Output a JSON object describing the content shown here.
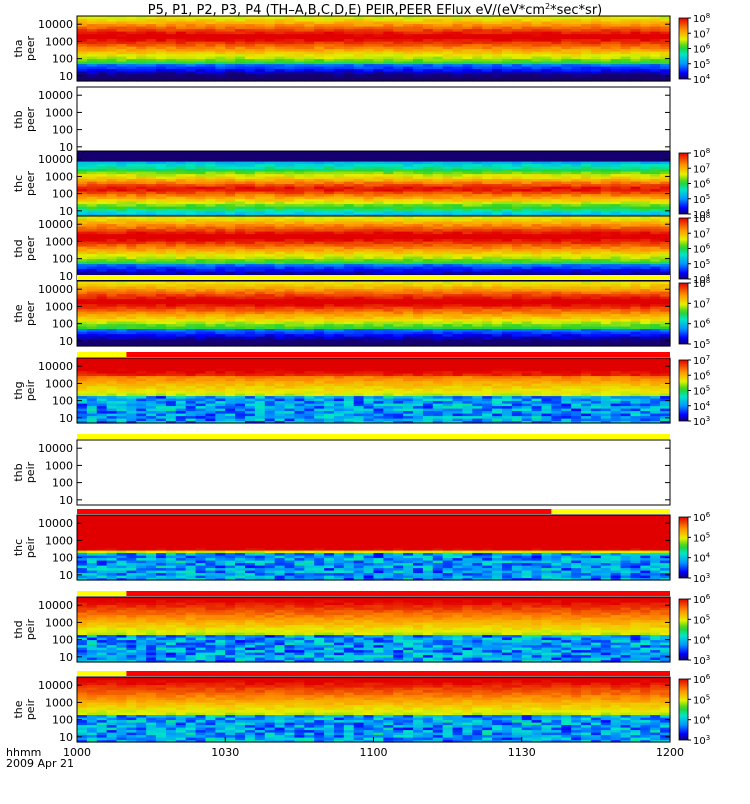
{
  "chart_data": {
    "type": "heatmap",
    "title": "P5, P1, P2, P3, P4 (TH–A,B,C,D,E) PEIR,PEER EFlux eV/(eV*cm",
    "title_sup": "2",
    "title_end": "*sec*sr)",
    "x_axis_label": "hhmm",
    "date_label": "2009 Apr 21",
    "x_ticks": [
      {
        "value": 1000,
        "label": "1000"
      },
      {
        "value": 1030,
        "label": "1030"
      },
      {
        "value": 1100,
        "label": "1100"
      },
      {
        "value": 1130,
        "label": "1130"
      },
      {
        "value": 1200,
        "label": "1200"
      }
    ],
    "x_range_minutes": [
      0,
      120
    ],
    "y_scale": "log",
    "y_range": [
      5,
      30000
    ],
    "y_ticks": [
      {
        "value": 10,
        "label": "10"
      },
      {
        "value": 100,
        "label": "100"
      },
      {
        "value": 1000,
        "label": "1000"
      },
      {
        "value": 10000,
        "label": "10000"
      }
    ],
    "panels": [
      {
        "probe": "tha",
        "species": "peer",
        "empty": false,
        "cb_log": [
          4,
          8
        ],
        "cb_ticks": [
          {
            "exp": "4"
          },
          {
            "exp": "5"
          },
          {
            "exp": "6"
          },
          {
            "exp": "7"
          },
          {
            "exp": "8"
          }
        ],
        "flags": []
      },
      {
        "probe": "thb",
        "species": "peer",
        "empty": true,
        "flags": []
      },
      {
        "probe": "thc",
        "species": "peer",
        "empty": false,
        "cb_log": [
          4,
          8
        ],
        "cb_ticks": [
          {
            "exp": "4"
          },
          {
            "exp": "5"
          },
          {
            "exp": "6"
          },
          {
            "exp": "7"
          },
          {
            "exp": "8"
          }
        ],
        "flags": []
      },
      {
        "probe": "thd",
        "species": "peer",
        "empty": false,
        "cb_log": [
          4,
          8
        ],
        "cb_ticks": [
          {
            "exp": "4"
          },
          {
            "exp": "5"
          },
          {
            "exp": "6"
          },
          {
            "exp": "7"
          },
          {
            "exp": "8"
          }
        ],
        "flags": []
      },
      {
        "probe": "the",
        "species": "peer",
        "empty": false,
        "cb_log": [
          5,
          8
        ],
        "cb_ticks": [
          {
            "exp": "5"
          },
          {
            "exp": "6"
          },
          {
            "exp": "7"
          },
          {
            "exp": "8"
          }
        ],
        "flags": [
          {
            "start": 0,
            "end": 120,
            "color": "#ffff00"
          }
        ]
      },
      {
        "probe": "thg",
        "species": "peir",
        "empty": false,
        "cb_log": [
          3,
          7
        ],
        "cb_ticks": [
          {
            "exp": "3"
          },
          {
            "exp": "4"
          },
          {
            "exp": "5"
          },
          {
            "exp": "6"
          },
          {
            "exp": "7"
          }
        ],
        "flags": [
          {
            "start": 0,
            "end": 10,
            "color": "#ffff00"
          },
          {
            "start": 10,
            "end": 120,
            "color": "#ff0000"
          }
        ]
      },
      {
        "probe": "thb",
        "species": "peir",
        "empty": true,
        "flags": [
          {
            "start": 0,
            "end": 120,
            "color": "#ffff00"
          }
        ]
      },
      {
        "probe": "thc",
        "species": "peir",
        "empty": false,
        "cb_log": [
          3,
          6
        ],
        "cb_ticks": [
          {
            "exp": "3"
          },
          {
            "exp": "4"
          },
          {
            "exp": "5"
          },
          {
            "exp": "6"
          }
        ],
        "flags": [
          {
            "start": 0,
            "end": 96,
            "color": "#ff0000"
          },
          {
            "start": 96,
            "end": 120,
            "color": "#ffff00"
          }
        ]
      },
      {
        "probe": "thd",
        "species": "peir",
        "empty": false,
        "cb_log": [
          3,
          6
        ],
        "cb_ticks": [
          {
            "exp": "3"
          },
          {
            "exp": "4"
          },
          {
            "exp": "5"
          },
          {
            "exp": "6"
          }
        ],
        "flags": [
          {
            "start": 0,
            "end": 10,
            "color": "#ffff00"
          },
          {
            "start": 10,
            "end": 120,
            "color": "#ff0000"
          }
        ]
      },
      {
        "probe": "the",
        "species": "peir",
        "empty": false,
        "cb_log": [
          3,
          6
        ],
        "cb_ticks": [
          {
            "exp": "3"
          },
          {
            "exp": "4"
          },
          {
            "exp": "5"
          },
          {
            "exp": "6"
          }
        ],
        "flags": [
          {
            "start": 0,
            "end": 10,
            "color": "#ffff00"
          },
          {
            "start": 10,
            "end": 120,
            "color": "#ff0000"
          }
        ]
      }
    ]
  }
}
